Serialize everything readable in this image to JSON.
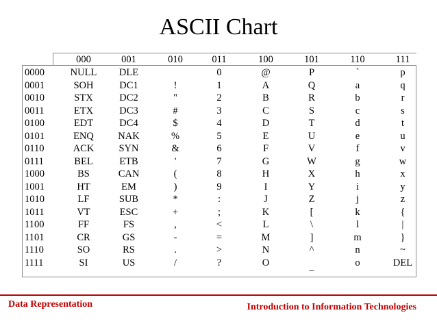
{
  "title": "ASCII Chart",
  "table": {
    "columns": [
      "000",
      "001",
      "010",
      "011",
      "100",
      "101",
      "110",
      "111"
    ],
    "rows": [
      {
        "bits": "0000",
        "cells": [
          "NULL",
          "DLE",
          "",
          "0",
          "@",
          "P",
          "`",
          "p"
        ]
      },
      {
        "bits": "0001",
        "cells": [
          "SOH",
          "DC1",
          "!",
          "1",
          "A",
          "Q",
          "a",
          "q"
        ]
      },
      {
        "bits": "0010",
        "cells": [
          "STX",
          "DC2",
          "\"",
          "2",
          "B",
          "R",
          "b",
          "r"
        ]
      },
      {
        "bits": "0011",
        "cells": [
          "ETX",
          "DC3",
          "#",
          "3",
          "C",
          "S",
          "c",
          "s"
        ]
      },
      {
        "bits": "0100",
        "cells": [
          "EDT",
          "DC4",
          "$",
          "4",
          "D",
          "T",
          "d",
          "t"
        ]
      },
      {
        "bits": "0101",
        "cells": [
          "ENQ",
          "NAK",
          "%",
          "5",
          "E",
          "U",
          "e",
          "u"
        ]
      },
      {
        "bits": "0110",
        "cells": [
          "ACK",
          "SYN",
          "&",
          "6",
          "F",
          "V",
          "f",
          "v"
        ]
      },
      {
        "bits": "0111",
        "cells": [
          "BEL",
          "ETB",
          "'",
          "7",
          "G",
          "W",
          "g",
          "w"
        ]
      },
      {
        "bits": "1000",
        "cells": [
          "BS",
          "CAN",
          "(",
          "8",
          "H",
          "X",
          "h",
          "x"
        ]
      },
      {
        "bits": "1001",
        "cells": [
          "HT",
          "EM",
          ")",
          "9",
          "I",
          "Y",
          "i",
          "y"
        ]
      },
      {
        "bits": "1010",
        "cells": [
          "LF",
          "SUB",
          "*",
          ":",
          "J",
          "Z",
          "j",
          "z"
        ]
      },
      {
        "bits": "1011",
        "cells": [
          "VT",
          "ESC",
          "+",
          ";",
          "K",
          "[",
          "k",
          "{"
        ]
      },
      {
        "bits": "1100",
        "cells": [
          "FF",
          "FS",
          ",",
          "<",
          "L",
          "\\",
          "l",
          "|"
        ]
      },
      {
        "bits": "1101",
        "cells": [
          "CR",
          "GS",
          "-",
          "=",
          "M",
          "]",
          "m",
          "}"
        ]
      },
      {
        "bits": "1110",
        "cells": [
          "SO",
          "RS",
          ".",
          ">",
          "N",
          "^",
          "n",
          "~"
        ]
      },
      {
        "bits": "1111",
        "cells": [
          "SI",
          "US",
          "/",
          "?",
          "O",
          "_",
          "o",
          "DEL"
        ]
      }
    ]
  },
  "footer": {
    "left": "Data Representation",
    "right": "Introduction to Information Technologies"
  },
  "colors": {
    "accent": "#c00000",
    "border": "#888888"
  }
}
